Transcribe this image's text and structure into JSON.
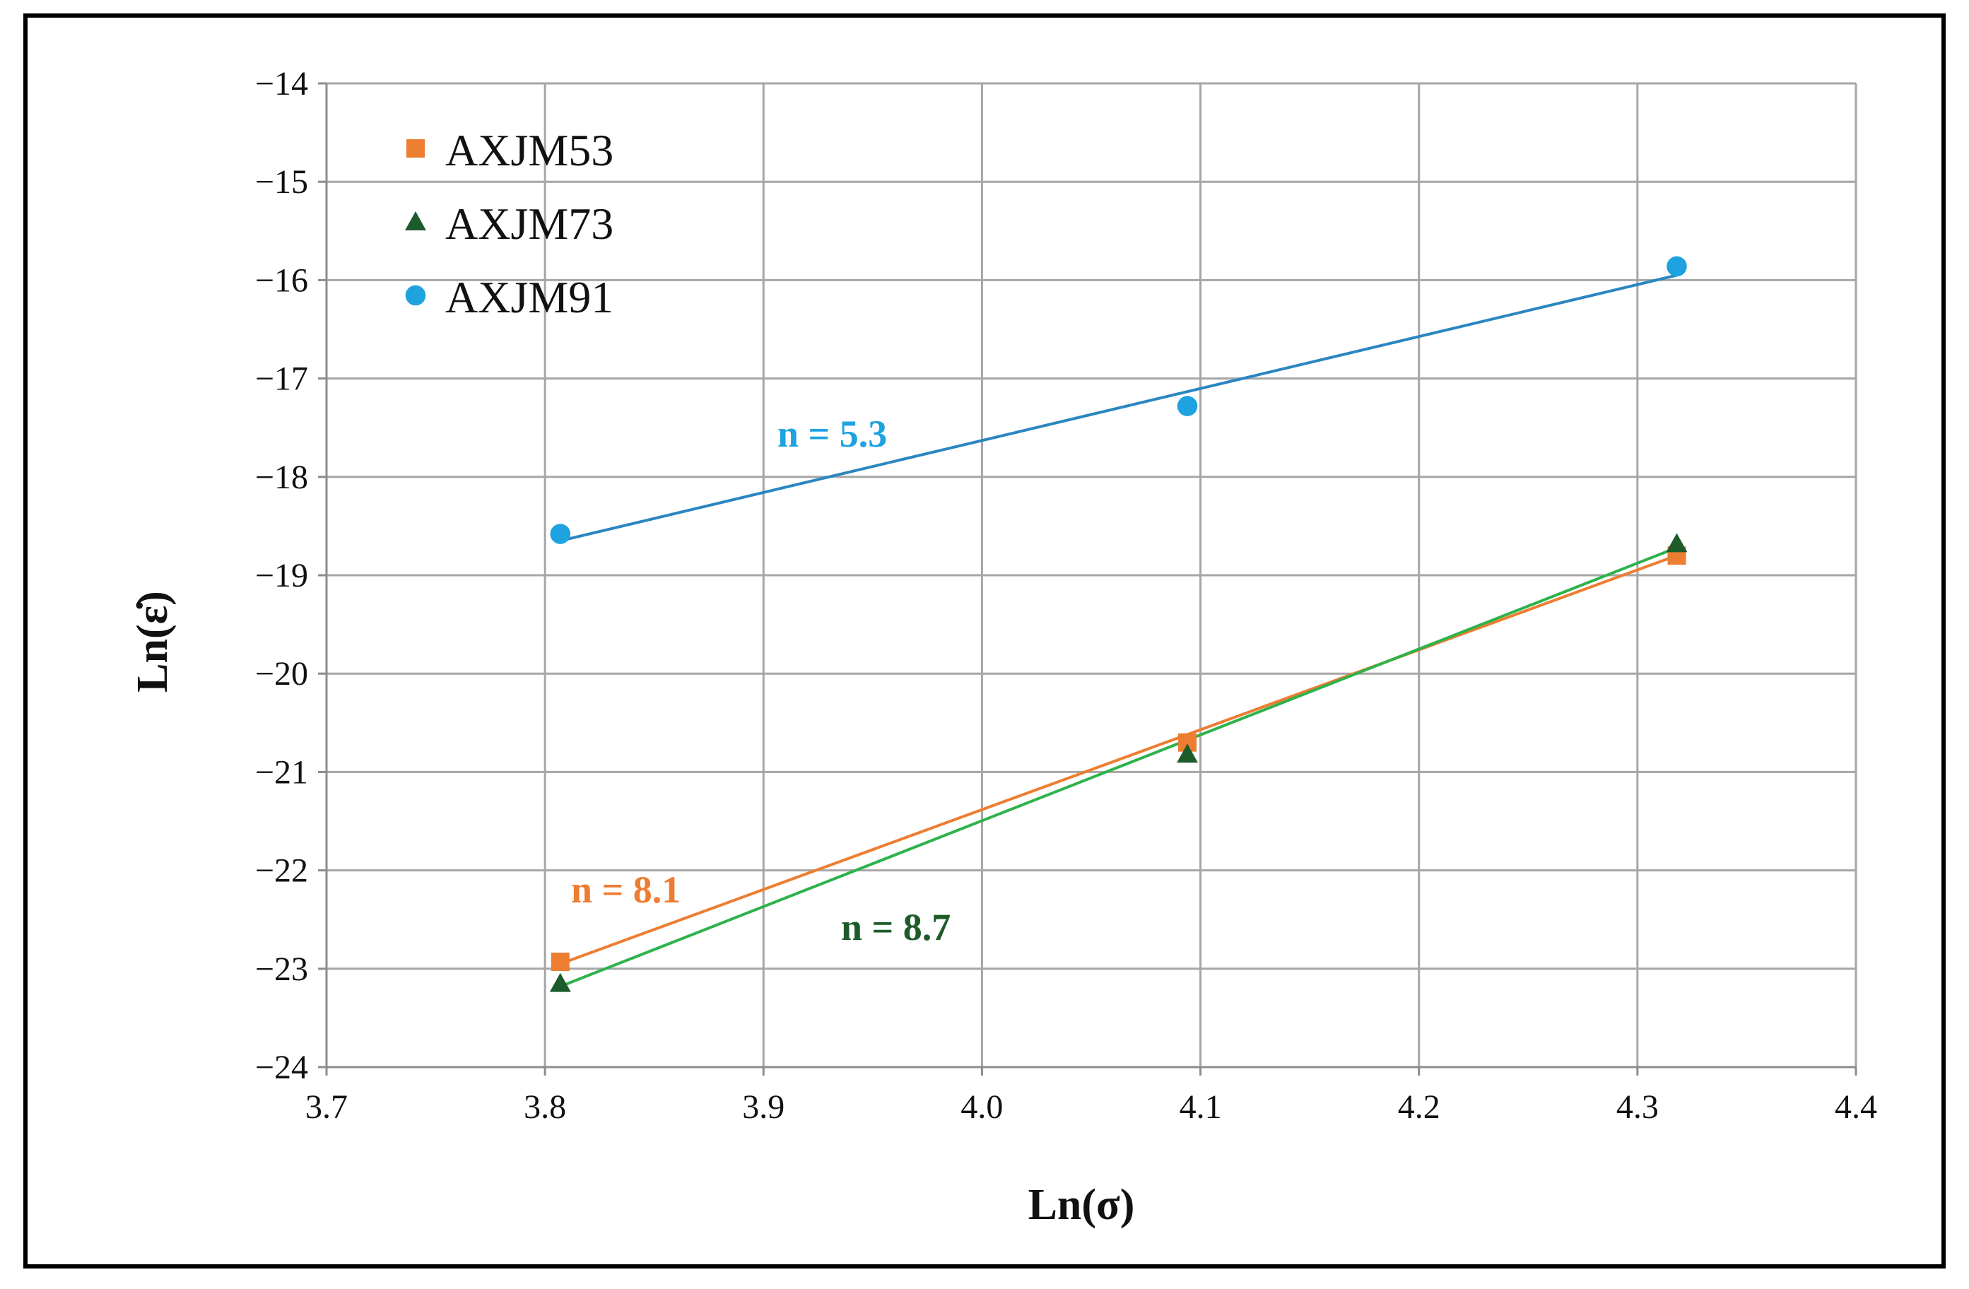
{
  "chart_data": {
    "type": "scatter",
    "xlabel": "Ln(σ)",
    "ylabel": "Ln(ε̇)",
    "xlim": [
      3.7,
      4.4
    ],
    "ylim": [
      -24,
      -14
    ],
    "x_ticks": [
      "3.7",
      "3.8",
      "3.9",
      "4.0",
      "4.1",
      "4.2",
      "4.3",
      "4.4"
    ],
    "y_ticks": [
      "−14",
      "−15",
      "−16",
      "−17",
      "−18",
      "−19",
      "−20",
      "−21",
      "−22",
      "−23",
      "−24"
    ],
    "grid": true,
    "legend_position": "top-left",
    "series": [
      {
        "name": "AXJM53",
        "marker": "square",
        "color": "#ed7d31",
        "line_color": "#ed7d31",
        "x": [
          3.807,
          4.094,
          4.318
        ],
        "y": [
          -22.93,
          -20.7,
          -18.8
        ],
        "fit": {
          "x": [
            3.807,
            4.318
          ],
          "y": [
            -22.95,
            -18.8
          ]
        },
        "annotation": "n = 8.1"
      },
      {
        "name": "AXJM73",
        "marker": "triangle",
        "color": "#1e5b2a",
        "line_color": "#2eb24c",
        "x": [
          3.807,
          4.094,
          4.318
        ],
        "y": [
          -23.15,
          -20.82,
          -18.68
        ],
        "fit": {
          "x": [
            3.807,
            4.318
          ],
          "y": [
            -23.18,
            -18.72
          ]
        },
        "annotation": "n = 8.7"
      },
      {
        "name": "AXJM91",
        "marker": "circle",
        "color": "#1fa2e0",
        "line_color": "#2a86c0",
        "x": [
          3.807,
          4.094,
          4.318
        ],
        "y": [
          -18.58,
          -17.28,
          -15.86
        ],
        "fit": {
          "x": [
            3.807,
            4.318
          ],
          "y": [
            -18.65,
            -15.95
          ]
        },
        "annotation": "n = 5.3"
      }
    ]
  }
}
